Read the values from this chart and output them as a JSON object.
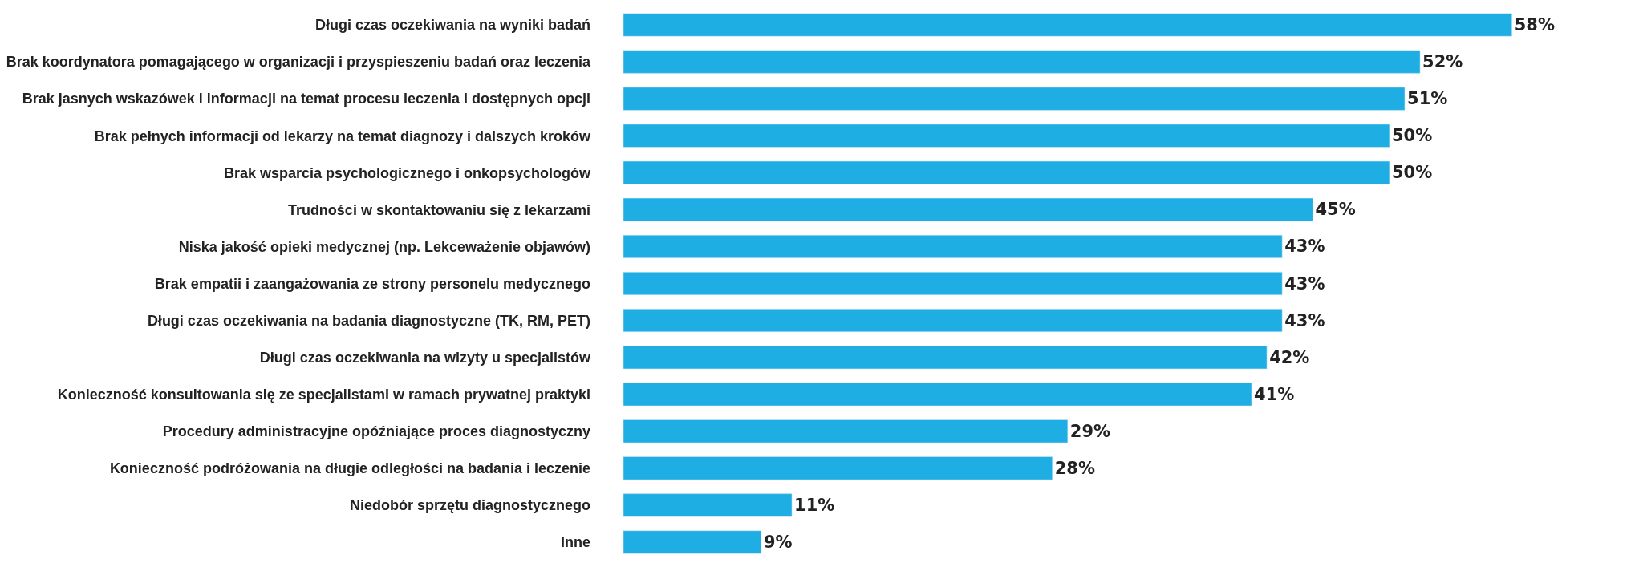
{
  "chart_data": {
    "type": "bar",
    "orientation": "horizontal",
    "tick_labels": "y",
    "categories": [
      "Długi czas oczekiwania na wyniki badań",
      "Brak koordynatora pomagającego w organizacji i przyspieszeniu badań oraz leczenia",
      "Brak jasnych wskazówek i informacji na temat procesu leczenia i dostępnych opcji",
      "Brak pełnych informacji od lekarzy na temat diagnozy i dalszych kroków",
      "Brak wsparcia psychologicznego i onkopsychologów",
      "Trudności w skontaktowaniu się z lekarzami",
      "Niska jakość opieki medycznej (np. Lekceważenie objawów)",
      "Brak empatii i zaangażowania ze strony personelu medycznego",
      "Długi czas oczekiwania na badania diagnostyczne (TK, RM, PET)",
      "Długi czas oczekiwania na wizyty u specjalistów",
      "Konieczność konsultowania się ze specjalistami w ramach prywatnej praktyki",
      "Procedury administracyjne opóźniające proces diagnostyczny",
      "Konieczność podróżowania na długie odległości na badania i leczenie",
      "Niedobór sprzętu diagnostycznego",
      "Inne"
    ],
    "values": [
      58,
      52,
      51,
      50,
      50,
      45,
      43,
      43,
      43,
      42,
      41,
      29,
      28,
      11,
      9
    ],
    "value_labels": [
      "58%",
      "52%",
      "51%",
      "50%",
      "50%",
      "45%",
      "43%",
      "43%",
      "43%",
      "42%",
      "41%",
      "29%",
      "28%",
      "11%",
      "9%"
    ],
    "color": "#1faee3"
  }
}
